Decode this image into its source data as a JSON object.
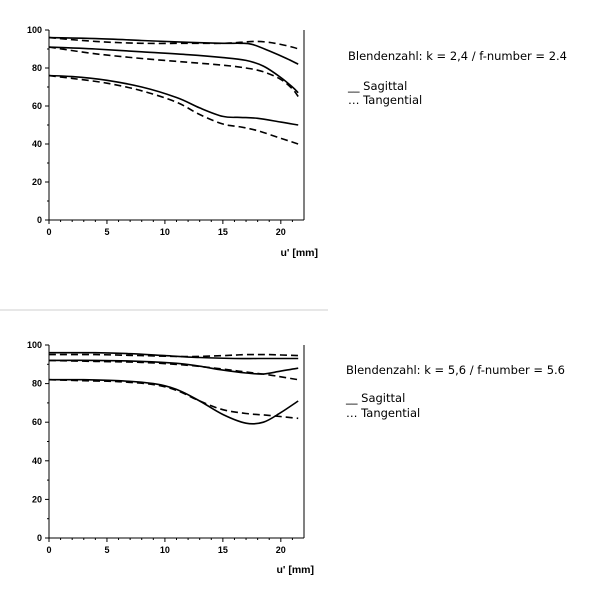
{
  "chart_data": [
    {
      "type": "line",
      "xlabel": "u' [mm]",
      "ylabel": "",
      "xlim": [
        0,
        22
      ],
      "ylim": [
        0,
        100
      ],
      "xticks": [
        0,
        5,
        10,
        15,
        20
      ],
      "yticks": [
        0,
        20,
        40,
        60,
        80,
        100
      ],
      "grid": false,
      "annotation": "Blendenzahl: k = 2,4 / f-number = 2.4",
      "legend": [
        "__ Sagittal",
        "… Tangential"
      ],
      "series": [
        {
          "style": "solid",
          "x": [
            0,
            4,
            8,
            12,
            15,
            16.5,
            17.5,
            19,
            20.5,
            21.5
          ],
          "y": [
            96,
            95.5,
            94.5,
            93.5,
            93,
            93,
            92.5,
            89,
            85,
            82
          ]
        },
        {
          "style": "dashed",
          "x": [
            0,
            4,
            8,
            12,
            15,
            16.5,
            18,
            19.5,
            21,
            21.5
          ],
          "y": [
            96,
            94,
            93,
            93,
            93,
            93.5,
            94,
            93,
            91,
            90
          ]
        },
        {
          "style": "solid",
          "x": [
            0,
            4,
            8,
            12,
            15,
            17,
            18.5,
            20,
            21,
            21.5
          ],
          "y": [
            91,
            90,
            88.5,
            87,
            85.5,
            84,
            81,
            75,
            70,
            67
          ]
        },
        {
          "style": "dashed",
          "x": [
            0,
            4,
            8,
            12,
            15,
            17,
            18.5,
            20,
            21,
            21.5
          ],
          "y": [
            91,
            87.5,
            85,
            83,
            81.5,
            80,
            78,
            74,
            69,
            65
          ]
        },
        {
          "style": "solid",
          "x": [
            0,
            2,
            5,
            8,
            11,
            13,
            15,
            16.5,
            18,
            20,
            21.5
          ],
          "y": [
            76,
            75.5,
            73.5,
            70,
            64.5,
            59,
            54.5,
            54,
            53.5,
            51.5,
            50
          ]
        },
        {
          "style": "dashed",
          "x": [
            0,
            2,
            5,
            8,
            11,
            13,
            15,
            16.5,
            18,
            20,
            21.5
          ],
          "y": [
            76,
            74.5,
            72,
            68,
            62,
            55.5,
            50.5,
            49,
            47,
            43,
            40
          ]
        }
      ]
    },
    {
      "type": "line",
      "xlabel": "u' [mm]",
      "ylabel": "",
      "xlim": [
        0,
        22
      ],
      "ylim": [
        0,
        100
      ],
      "xticks": [
        0,
        5,
        10,
        15,
        20
      ],
      "yticks": [
        0,
        20,
        40,
        60,
        80,
        100
      ],
      "grid": false,
      "annotation": "Blendenzahl: k = 5,6 / f-number = 5.6",
      "legend": [
        "__ Sagittal",
        "… Tangential"
      ],
      "series": [
        {
          "style": "solid",
          "x": [
            0,
            4,
            7,
            10,
            13,
            16,
            18,
            20,
            21.5
          ],
          "y": [
            96,
            96,
            95.5,
            94.5,
            93.5,
            93,
            93,
            93,
            93
          ]
        },
        {
          "style": "dashed",
          "x": [
            0,
            4,
            8,
            12,
            15,
            17,
            19,
            21.5
          ],
          "y": [
            95,
            95,
            94.5,
            94,
            94.5,
            95,
            95,
            94.5
          ]
        },
        {
          "style": "solid",
          "x": [
            0,
            4,
            8,
            11,
            13,
            15,
            17,
            18.5,
            20,
            21.5
          ],
          "y": [
            92,
            92,
            91.5,
            90.5,
            89,
            87,
            85.5,
            85,
            86.5,
            88
          ]
        },
        {
          "style": "dashed",
          "x": [
            0,
            4,
            8,
            12,
            15,
            17,
            19,
            20.5,
            21.5
          ],
          "y": [
            92,
            91.5,
            91,
            89.5,
            87.5,
            86,
            84.5,
            83,
            82
          ]
        },
        {
          "style": "solid",
          "x": [
            0,
            3,
            6,
            9,
            11,
            13,
            15,
            17,
            18.5,
            20,
            21.5
          ],
          "y": [
            82,
            82,
            81.5,
            80,
            77,
            71,
            64,
            59.5,
            60,
            65,
            71
          ]
        },
        {
          "style": "dashed",
          "x": [
            0,
            3,
            6,
            9,
            11,
            13,
            15,
            17,
            19,
            21.5
          ],
          "y": [
            82,
            81.5,
            81,
            79.5,
            76.5,
            71,
            66.5,
            64.5,
            63.5,
            62
          ]
        }
      ]
    }
  ]
}
